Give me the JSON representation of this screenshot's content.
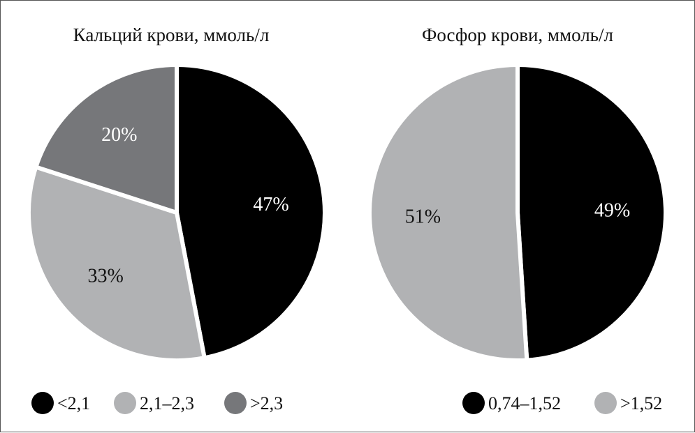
{
  "chart_data": [
    {
      "type": "pie",
      "title": "Кальций крови, ммоль/л",
      "slices": [
        {
          "label": "<2,1",
          "value": 47,
          "value_label": "47%",
          "color": "#000000",
          "text_color": "#ffffff"
        },
        {
          "label": "2,1–2,3",
          "value": 33,
          "value_label": "33%",
          "color": "#b1b2b4",
          "text_color": "#111111"
        },
        {
          "label": ">2,3",
          "value": 20,
          "value_label": "20%",
          "color": "#76777a",
          "text_color": "#ffffff"
        }
      ],
      "legend_position": "bottom"
    },
    {
      "type": "pie",
      "title": "Фосфор крови, ммоль/л",
      "slices": [
        {
          "label": "0,74–1,52",
          "value": 49,
          "value_label": "49%",
          "color": "#000000",
          "text_color": "#ffffff"
        },
        {
          "label": ">1,52",
          "value": 51,
          "value_label": "51%",
          "color": "#b1b2b4",
          "text_color": "#111111"
        }
      ],
      "legend_position": "bottom"
    }
  ]
}
